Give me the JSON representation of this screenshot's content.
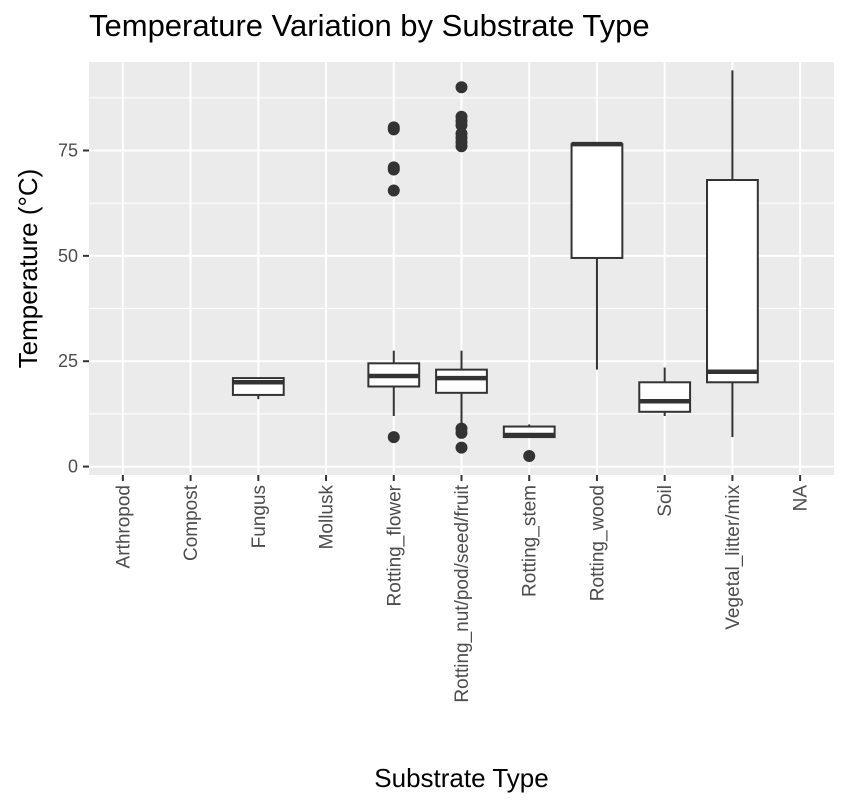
{
  "chart_data": {
    "type": "boxplot",
    "title": "Temperature Variation by Substrate Type",
    "xlabel": "Substrate Type",
    "ylabel": "Temperature (°C)",
    "ylim": [
      -2,
      96
    ],
    "yticks": [
      0,
      25,
      50,
      75
    ],
    "grid": true,
    "colors": {
      "panel": "#EBEBEB",
      "grid": "#FFFFFF",
      "box_fill": "#FFFFFF",
      "box_stroke": "#333333",
      "text": "#4D4D4D"
    },
    "categories": [
      "Arthropod",
      "Compost",
      "Fungus",
      "Mollusk",
      "Rotting_flower",
      "Rotting_nut/pod/seed/fruit",
      "Rotting_stem",
      "Rotting_wood",
      "Soil",
      "Vegetal_litter/mix",
      "NA"
    ],
    "boxes": [
      {
        "category": "Fungus",
        "min": 16,
        "q1": 17,
        "median": 20,
        "q3": 21,
        "max": 21,
        "outliers": []
      },
      {
        "category": "Rotting_flower",
        "min": 12,
        "q1": 19,
        "median": 21.5,
        "q3": 24.5,
        "max": 27.5,
        "outliers": [
          7,
          65.5,
          70.5,
          71,
          80,
          80.5
        ]
      },
      {
        "category": "Rotting_nut/pod/seed/fruit",
        "min": 10,
        "q1": 17.5,
        "median": 21,
        "q3": 23,
        "max": 27.5,
        "outliers": [
          4.5,
          8,
          9,
          76,
          77,
          78,
          79,
          81,
          82,
          83,
          90
        ]
      },
      {
        "category": "Rotting_stem",
        "min": 7,
        "q1": 7,
        "median": 7.5,
        "q3": 9.5,
        "max": 10,
        "outliers": [
          2.5
        ]
      },
      {
        "category": "Rotting_wood",
        "min": 23,
        "q1": 49.5,
        "median": 76.5,
        "q3": 76.5,
        "max": 77,
        "outliers": []
      },
      {
        "category": "Soil",
        "min": 12,
        "q1": 13,
        "median": 15.5,
        "q3": 20,
        "max": 23.5,
        "outliers": []
      },
      {
        "category": "Vegetal_litter/mix",
        "min": 7,
        "q1": 20,
        "median": 22.5,
        "q3": 68,
        "max": 94,
        "outliers": []
      }
    ]
  }
}
